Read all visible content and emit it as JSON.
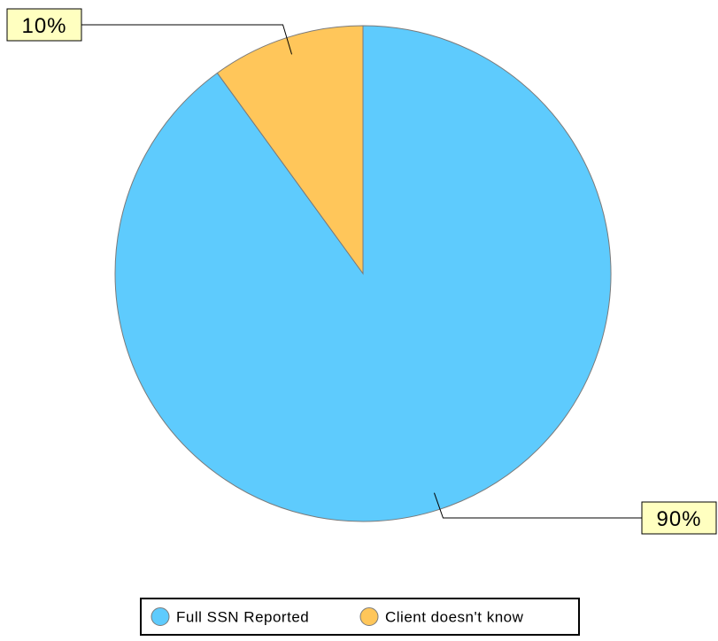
{
  "chart_data": {
    "type": "pie",
    "categories": [
      "Full SSN Reported",
      "Client doesn't know"
    ],
    "values": [
      90,
      10
    ],
    "data_labels": [
      "90%",
      "10%"
    ],
    "colors": [
      "#5ecbfd",
      "#ffc65a"
    ],
    "label_box_color": "#ffffc0",
    "slice_border_color": "#7a7a7a",
    "legend": {
      "placement": "bottom-center",
      "entries": [
        "Full SSN Reported",
        "Client doesn't know"
      ]
    },
    "start_angle": "12 o'clock",
    "direction": "clockwise"
  }
}
